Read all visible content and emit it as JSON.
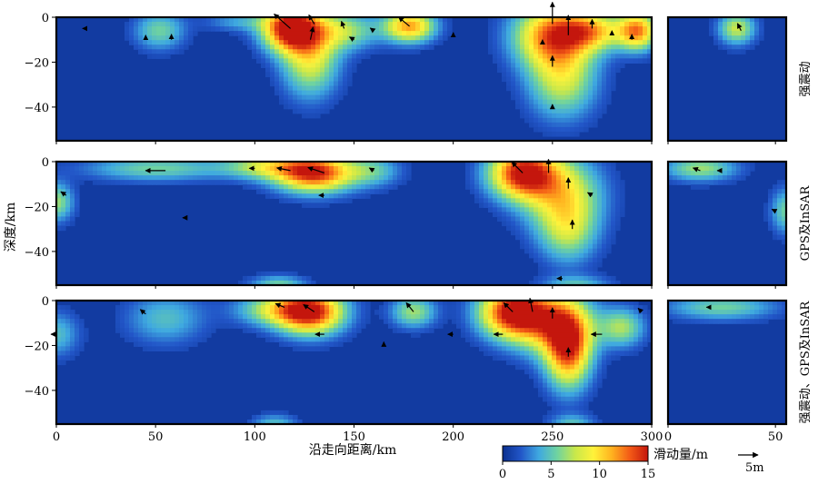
{
  "chart_data": {
    "type": "heatmap",
    "title": "",
    "xlabel": "沿走向距离/km",
    "ylabel": "深度/km",
    "colorbar": {
      "label": "滑动量/m",
      "range": [
        0,
        15
      ],
      "ticks": [
        "0",
        "5",
        "10",
        "15"
      ],
      "colors": [
        "#0a2f8f",
        "#2256c8",
        "#3fa9e0",
        "#6fd3a0",
        "#c9e84a",
        "#fff23a",
        "#ffb21f",
        "#f35a16",
        "#c4160d"
      ]
    },
    "vector_scale": {
      "label": "5m",
      "value": 5
    },
    "main_x": {
      "range": [
        0,
        300
      ],
      "ticks": [
        "0",
        "50",
        "100",
        "150",
        "200",
        "250",
        "300"
      ]
    },
    "side_x": {
      "range": [
        0,
        55
      ],
      "ticks": [
        "0",
        "50"
      ]
    },
    "y": {
      "range": [
        -55,
        0
      ],
      "ticks": [
        "0",
        "−20",
        "−40"
      ]
    },
    "panels": [
      {
        "label": "强震动",
        "main_patches": [
          {
            "x": 118,
            "y": -5,
            "sx": 10,
            "sy": 7,
            "a": 15
          },
          {
            "x": 128,
            "y": -18,
            "sx": 10,
            "sy": 12,
            "a": 8
          },
          {
            "x": 145,
            "y": -6,
            "sx": 12,
            "sy": 6,
            "a": 6
          },
          {
            "x": 178,
            "y": -4,
            "sx": 9,
            "sy": 5,
            "a": 11
          },
          {
            "x": 52,
            "y": -6,
            "sx": 9,
            "sy": 6,
            "a": 5
          },
          {
            "x": 250,
            "y": -8,
            "sx": 14,
            "sy": 10,
            "a": 11
          },
          {
            "x": 255,
            "y": -28,
            "sx": 12,
            "sy": 12,
            "a": 7
          },
          {
            "x": 270,
            "y": -6,
            "sx": 12,
            "sy": 6,
            "a": 8
          },
          {
            "x": 293,
            "y": -6,
            "sx": 7,
            "sy": 6,
            "a": 11
          },
          {
            "x": 92,
            "y": -2,
            "sx": 12,
            "sy": 3,
            "a": 3
          }
        ],
        "side_patches": [
          {
            "x": 32,
            "y": -5,
            "sx": 6,
            "sy": 5,
            "a": 7
          }
        ],
        "main_arrows": [
          {
            "x": 118,
            "y": -5,
            "dx": -18,
            "dy": 16
          },
          {
            "x": 128,
            "y": -10,
            "dx": 3,
            "dy": 14
          },
          {
            "x": 130,
            "y": -3,
            "dx": -6,
            "dy": 10
          },
          {
            "x": 145,
            "y": -5,
            "dx": -3,
            "dy": 8
          },
          {
            "x": 178,
            "y": -4,
            "dx": -12,
            "dy": 10
          },
          {
            "x": 250,
            "y": -3,
            "dx": 0,
            "dy": 24
          },
          {
            "x": 258,
            "y": -8,
            "dx": 0,
            "dy": 22
          },
          {
            "x": 250,
            "y": -22,
            "dx": 0,
            "dy": 12
          },
          {
            "x": 270,
            "y": -5,
            "dx": 0,
            "dy": 10
          },
          {
            "x": 58,
            "y": -10,
            "dx": 0,
            "dy": 6
          },
          {
            "x": 45,
            "y": -10,
            "dx": 0,
            "dy": 5
          },
          {
            "x": 150,
            "y": -10,
            "dx": -5,
            "dy": 3
          },
          {
            "x": 160,
            "y": -6,
            "dx": -4,
            "dy": 3
          },
          {
            "x": 200,
            "y": -8,
            "dx": 0,
            "dy": 3
          },
          {
            "x": 280,
            "y": -8,
            "dx": 0,
            "dy": 5
          },
          {
            "x": 290,
            "y": -10,
            "dx": 0,
            "dy": 6
          },
          {
            "x": 245,
            "y": -12,
            "dx": 0,
            "dy": 5
          },
          {
            "x": 15,
            "y": -5,
            "dx": -4,
            "dy": 0
          },
          {
            "x": 250,
            "y": -40,
            "dx": 0,
            "dy": 3
          }
        ],
        "side_arrows": [
          {
            "x": 34,
            "y": -6,
            "dx": -4,
            "dy": 8
          }
        ]
      },
      {
        "label": "GPS及InSAR",
        "main_patches": [
          {
            "x": 130,
            "y": -5,
            "sx": 14,
            "sy": 6,
            "a": 14
          },
          {
            "x": 105,
            "y": -2,
            "sx": 15,
            "sy": 4,
            "a": 6
          },
          {
            "x": 160,
            "y": -4,
            "sx": 10,
            "sy": 5,
            "a": 4
          },
          {
            "x": 50,
            "y": -3,
            "sx": 25,
            "sy": 4,
            "a": 5
          },
          {
            "x": 235,
            "y": -5,
            "sx": 12,
            "sy": 8,
            "a": 14
          },
          {
            "x": 255,
            "y": -15,
            "sx": 14,
            "sy": 12,
            "a": 8
          },
          {
            "x": 258,
            "y": -32,
            "sx": 10,
            "sy": 10,
            "a": 5
          },
          {
            "x": 0,
            "y": -18,
            "sx": 6,
            "sy": 6,
            "a": 6
          },
          {
            "x": 112,
            "y": -55,
            "sx": 10,
            "sy": 3,
            "a": 5
          },
          {
            "x": 262,
            "y": -55,
            "sx": 12,
            "sy": 3,
            "a": 4
          }
        ],
        "side_patches": [
          {
            "x": 15,
            "y": -3,
            "sx": 12,
            "sy": 4,
            "a": 6
          },
          {
            "x": 55,
            "y": -22,
            "sx": 5,
            "sy": 7,
            "a": 5
          }
        ],
        "main_arrows": [
          {
            "x": 135,
            "y": -5,
            "dx": -18,
            "dy": 6
          },
          {
            "x": 118,
            "y": -4,
            "dx": -15,
            "dy": 3
          },
          {
            "x": 55,
            "y": -4,
            "dx": -22,
            "dy": 0
          },
          {
            "x": 235,
            "y": -5,
            "dx": -12,
            "dy": 12
          },
          {
            "x": 248,
            "y": -5,
            "dx": 0,
            "dy": 15
          },
          {
            "x": 258,
            "y": -12,
            "dx": 0,
            "dy": 12
          },
          {
            "x": 260,
            "y": -30,
            "dx": 0,
            "dy": 10
          },
          {
            "x": 160,
            "y": -4,
            "dx": -5,
            "dy": 3
          },
          {
            "x": 100,
            "y": -3,
            "dx": -6,
            "dy": 0
          },
          {
            "x": 5,
            "y": -15,
            "dx": -6,
            "dy": 4
          },
          {
            "x": 270,
            "y": -15,
            "dx": -5,
            "dy": 3
          },
          {
            "x": 135,
            "y": -15,
            "dx": -6,
            "dy": 0
          },
          {
            "x": 255,
            "y": -52,
            "dx": -6,
            "dy": 0
          },
          {
            "x": 65,
            "y": -25,
            "dx": -3,
            "dy": 0
          }
        ],
        "side_arrows": [
          {
            "x": 15,
            "y": -4,
            "dx": -8,
            "dy": 3
          },
          {
            "x": 25,
            "y": -4,
            "dx": -5,
            "dy": 0
          },
          {
            "x": 50,
            "y": -22,
            "dx": -4,
            "dy": 2
          }
        ]
      },
      {
        "label": "强震动、GPS及InSAR",
        "main_patches": [
          {
            "x": 128,
            "y": -5,
            "sx": 12,
            "sy": 7,
            "a": 14
          },
          {
            "x": 110,
            "y": -4,
            "sx": 14,
            "sy": 5,
            "a": 6
          },
          {
            "x": 180,
            "y": -5,
            "sx": 8,
            "sy": 5,
            "a": 6
          },
          {
            "x": 55,
            "y": -8,
            "sx": 14,
            "sy": 8,
            "a": 4
          },
          {
            "x": 230,
            "y": -5,
            "sx": 12,
            "sy": 8,
            "a": 14
          },
          {
            "x": 250,
            "y": -10,
            "sx": 14,
            "sy": 10,
            "a": 9
          },
          {
            "x": 258,
            "y": -22,
            "sx": 8,
            "sy": 12,
            "a": 12
          },
          {
            "x": 285,
            "y": -12,
            "sx": 8,
            "sy": 6,
            "a": 6
          },
          {
            "x": 0,
            "y": -15,
            "sx": 8,
            "sy": 7,
            "a": 4
          },
          {
            "x": 110,
            "y": -55,
            "sx": 8,
            "sy": 3,
            "a": 4
          },
          {
            "x": 260,
            "y": -55,
            "sx": 8,
            "sy": 3,
            "a": 4
          }
        ],
        "side_patches": [
          {
            "x": 25,
            "y": -3,
            "sx": 18,
            "sy": 4,
            "a": 5
          }
        ],
        "main_arrows": [
          {
            "x": 130,
            "y": -5,
            "dx": -12,
            "dy": 8
          },
          {
            "x": 115,
            "y": -3,
            "dx": -10,
            "dy": 4
          },
          {
            "x": 230,
            "y": -5,
            "dx": -10,
            "dy": 10
          },
          {
            "x": 240,
            "y": -5,
            "dx": -3,
            "dy": 15
          },
          {
            "x": 250,
            "y": -8,
            "dx": 0,
            "dy": 12
          },
          {
            "x": 258,
            "y": -25,
            "dx": 0,
            "dy": 10
          },
          {
            "x": 180,
            "y": -5,
            "dx": -8,
            "dy": 10
          },
          {
            "x": 45,
            "y": -6,
            "dx": -6,
            "dy": 5
          },
          {
            "x": 0,
            "y": -15,
            "dx": -6,
            "dy": 0
          },
          {
            "x": 135,
            "y": -15,
            "dx": -10,
            "dy": 0
          },
          {
            "x": 225,
            "y": -15,
            "dx": -10,
            "dy": 0
          },
          {
            "x": 275,
            "y": -15,
            "dx": -12,
            "dy": 0
          },
          {
            "x": 200,
            "y": -15,
            "dx": -6,
            "dy": 0
          },
          {
            "x": 165,
            "y": -20,
            "dx": 0,
            "dy": 4
          },
          {
            "x": 295,
            "y": -5,
            "dx": -4,
            "dy": 4
          }
        ],
        "side_arrows": [
          {
            "x": 20,
            "y": -3,
            "dx": -5,
            "dy": 0
          }
        ]
      }
    ]
  }
}
